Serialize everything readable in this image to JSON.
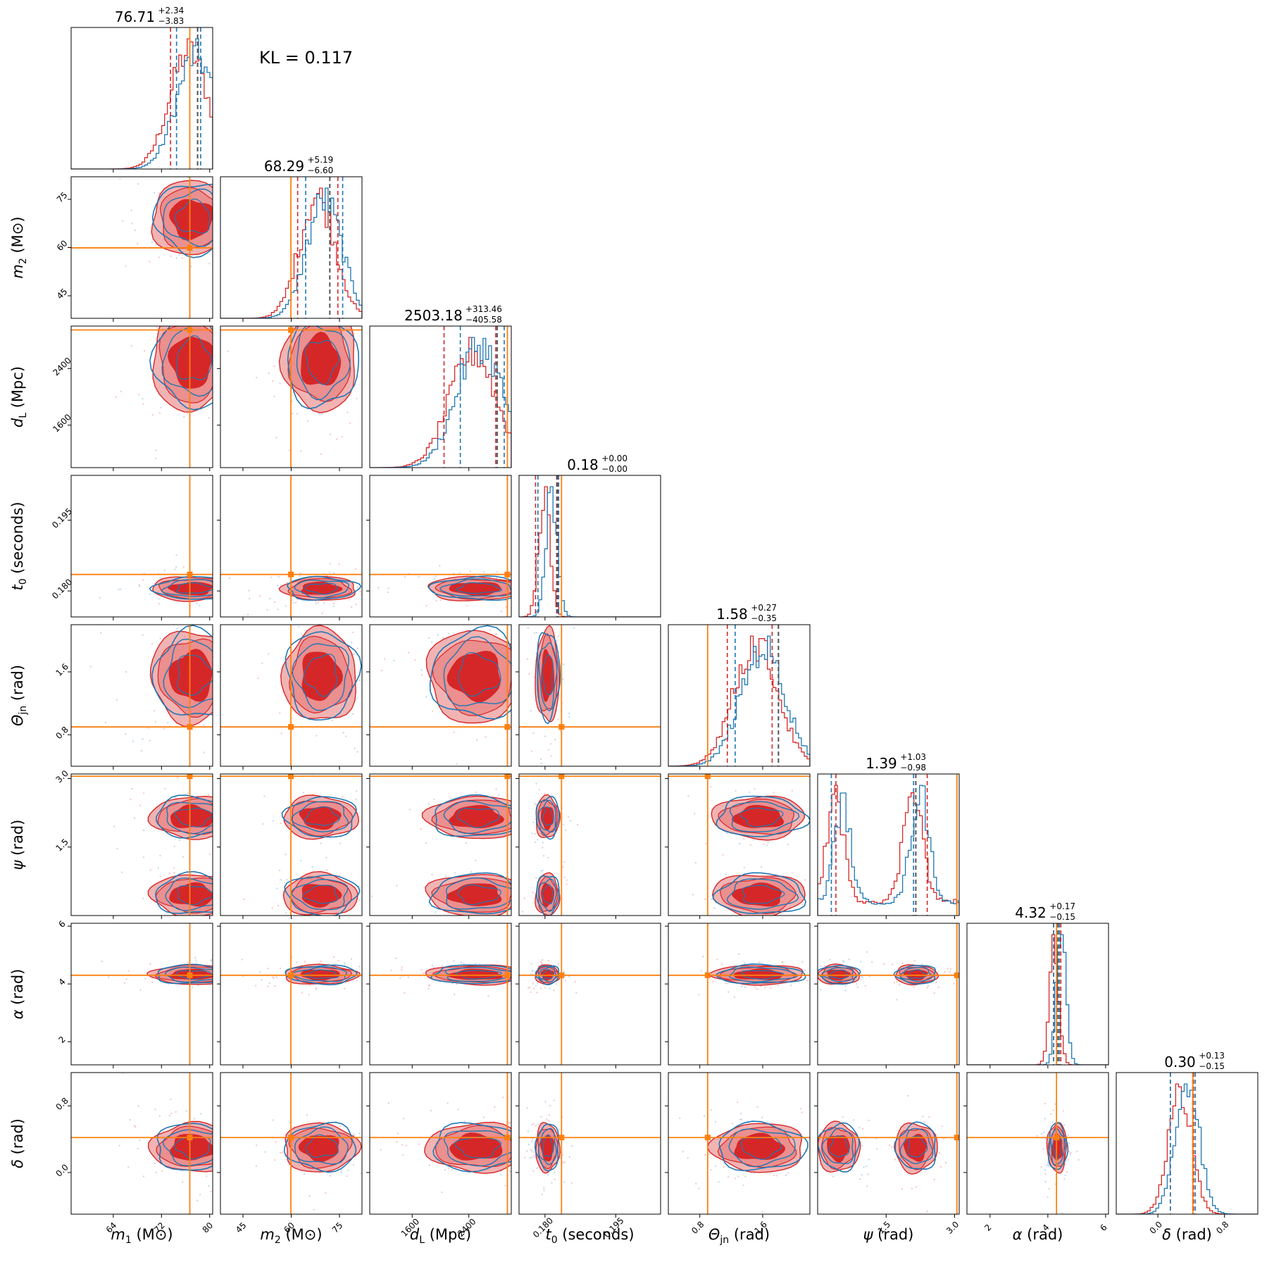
{
  "chart_data": {
    "type": "corner",
    "annotation": "KL = 0.117",
    "series": [
      {
        "color": "#1f77b4"
      },
      {
        "color": "#d62728"
      }
    ],
    "truth_color": "#ff7f0e",
    "parameters": [
      {
        "key": "m1",
        "label": "m",
        "sub": "1",
        "unit": "(M⊙)",
        "range": [
          57,
          80.5
        ],
        "ticks": [
          64,
          72,
          80
        ],
        "truth": 76.7,
        "title": "76.71",
        "title_plus": "+2.34",
        "title_minus": "−3.83",
        "median": 78.0,
        "q_red": [
          73.5,
          78.0
        ],
        "q_blue": [
          74.5,
          78.5
        ]
      },
      {
        "key": "m2",
        "label": "m",
        "sub": "2",
        "unit": "(M⊙)",
        "range": [
          38,
          82
        ],
        "ticks": [
          45,
          60,
          75
        ],
        "truth": 59.9,
        "title": "68.29",
        "title_plus": "+5.19",
        "title_minus": "−6.60",
        "median": 72.0,
        "q_red": [
          62.0,
          74.5
        ],
        "q_blue": [
          64.5,
          76.0
        ]
      },
      {
        "key": "dL",
        "label": "d",
        "sub": "L",
        "unit": "(Mpc)",
        "range": [
          1000,
          3000
        ],
        "ticks": [
          1600,
          2400
        ],
        "truth": 2945,
        "title": "2503.18",
        "title_plus": "+313.46",
        "title_minus": "−405.58",
        "median": 2800,
        "q_red": [
          2050,
          2780
        ],
        "q_blue": [
          2280,
          2900
        ]
      },
      {
        "key": "t0",
        "label": "t",
        "sub": "0",
        "unit": "(seconds)",
        "range": [
          0.1745,
          0.2045
        ],
        "ticks": [
          0.18,
          0.195
        ],
        "truth": 0.1835,
        "title": "0.18",
        "title_plus": "+0.00",
        "title_minus": "−0.00",
        "median": 0.1825,
        "q_red": [
          0.178,
          0.1827
        ],
        "q_blue": [
          0.1785,
          0.1829
        ]
      },
      {
        "key": "theta",
        "label": "Θ",
        "sub": "jn",
        "unit": "(rad)",
        "range": [
          0.4,
          2.2
        ],
        "ticks": [
          0.8,
          1.6
        ],
        "truth": 0.9,
        "title": "1.58",
        "title_plus": "+0.27",
        "title_minus": "−0.35",
        "median": 1.8,
        "q_red": [
          1.15,
          1.72
        ],
        "q_blue": [
          1.25,
          1.8
        ]
      },
      {
        "key": "psi",
        "label": "ψ",
        "sub": "",
        "unit": "(rad)",
        "range": [
          0,
          3.1
        ],
        "ticks": [
          1.5,
          3.0
        ],
        "truth": 3.05,
        "title": "1.39",
        "title_plus": "+1.03",
        "title_minus": "−0.98",
        "median": 2.15,
        "q_red": [
          0.4,
          2.4
        ],
        "q_blue": [
          0.3,
          2.1
        ]
      },
      {
        "key": "alpha",
        "label": "α",
        "sub": "",
        "unit": "(rad)",
        "range": [
          1.2,
          6.1
        ],
        "ticks": [
          2,
          4,
          6
        ],
        "truth": 4.3,
        "title": "4.32",
        "title_plus": "+0.17",
        "title_minus": "−0.15",
        "median": 4.35,
        "q_red": [
          4.2,
          4.45
        ],
        "q_blue": [
          4.2,
          4.4
        ]
      },
      {
        "key": "delta",
        "label": "δ",
        "sub": "",
        "unit": "(rad)",
        "range": [
          -0.5,
          1.2
        ],
        "ticks": [
          0.0,
          0.8
        ],
        "truth": 0.42,
        "title": "0.30",
        "title_plus": "+0.13",
        "title_minus": "−0.15",
        "median": 0.42,
        "q_red": [
          0.15,
          0.43
        ],
        "q_blue": [
          0.15,
          0.45
        ]
      }
    ],
    "tick_labels": {
      "m1": [
        "64",
        "72",
        "80"
      ],
      "m2": [
        "45",
        "60",
        "75"
      ],
      "dL": [
        "1600",
        "2400"
      ],
      "t0": [
        "0.180",
        "0.195"
      ],
      "theta": [
        "0.8",
        "1.6"
      ],
      "psi": [
        "1.5",
        "3.0"
      ],
      "alpha": [
        "2",
        "4",
        "6"
      ],
      "delta": [
        "0.0",
        "0.8"
      ]
    }
  }
}
